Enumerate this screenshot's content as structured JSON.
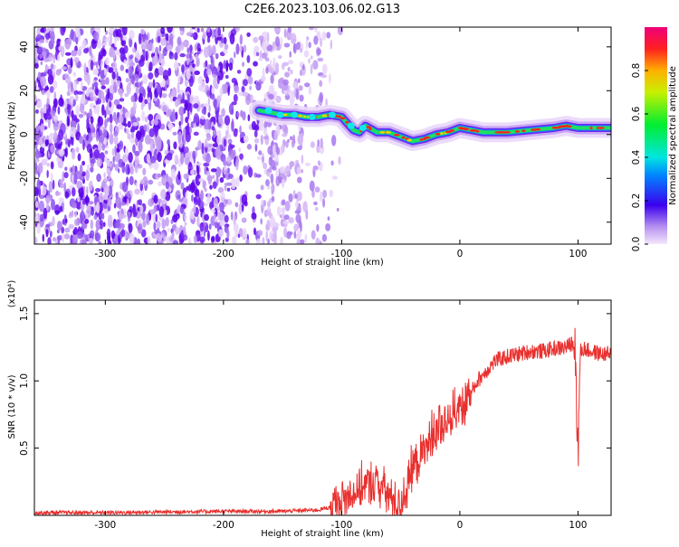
{
  "title": "C2E6.2023.103.06.02.G13",
  "chart_data": [
    {
      "type": "heatmap",
      "xlabel": "Height of straight line (km)",
      "ylabel": "Frequency (Hz)",
      "xlim": [
        -360,
        128
      ],
      "ylim": [
        -50,
        49
      ],
      "x_ticks": [
        -300,
        -200,
        -100,
        0,
        100
      ],
      "x_tick_labels": [
        "-300",
        "-200",
        "-100",
        "0",
        "100"
      ],
      "y_ticks": [
        -40,
        -20,
        0,
        20,
        40
      ],
      "y_tick_labels": [
        "-40",
        "-20",
        "0",
        "20",
        "40"
      ],
      "noise_region_x": [
        -360,
        -120
      ],
      "ridge": {
        "x": [
          -170,
          -160,
          -150,
          -140,
          -130,
          -120,
          -110,
          -100,
          -95,
          -90,
          -85,
          -80,
          -70,
          -60,
          -50,
          -40,
          -30,
          -20,
          -10,
          0,
          10,
          20,
          40,
          60,
          80,
          90,
          100,
          110,
          128
        ],
        "y": [
          11,
          10,
          9,
          9,
          8,
          8,
          9,
          8,
          5,
          2,
          1,
          4,
          1,
          1,
          -1,
          -3,
          -2,
          0,
          1,
          3,
          2,
          1,
          1,
          2,
          3,
          4,
          3,
          3,
          3
        ]
      },
      "colorbar": {
        "label": "Normalized spectral amplitude",
        "range": [
          0,
          1
        ],
        "ticks": [
          0.0,
          0.2,
          0.4,
          0.6,
          0.8
        ],
        "tick_labels": [
          "0.0",
          "0.2",
          "0.4",
          "0.6",
          "0.8"
        ]
      },
      "grid": false
    },
    {
      "type": "line",
      "xlabel": "Height of straight line (km)",
      "ylabel": "SNR (10 * v/v)",
      "y_multiplier": "(x10⁴)",
      "xlim": [
        -360,
        128
      ],
      "ylim": [
        0,
        1.6
      ],
      "x_ticks": [
        -300,
        -200,
        -100,
        0,
        100
      ],
      "x_tick_labels": [
        "-300",
        "-200",
        "-100",
        "0",
        "100"
      ],
      "y_ticks": [
        0.5,
        1.0,
        1.5
      ],
      "y_tick_labels": [
        "0.5",
        "1.0",
        "1.5"
      ],
      "color": "#e8302e",
      "series": [
        {
          "x": [
            -360,
            -300,
            -250,
            -200,
            -150,
            -120,
            -110,
            -100,
            -90,
            -80,
            -70,
            -60,
            -55,
            -50,
            -45,
            -40,
            -35,
            -30,
            -25,
            -20,
            -15,
            -10,
            -5,
            0,
            5,
            10,
            15,
            20,
            25,
            30,
            40,
            50,
            60,
            70,
            80,
            90,
            95,
            98,
            100,
            102,
            105,
            110,
            120,
            128
          ],
          "values": [
            0.02,
            0.02,
            0.025,
            0.03,
            0.03,
            0.04,
            0.06,
            0.1,
            0.18,
            0.22,
            0.25,
            0.15,
            0.1,
            0.08,
            0.2,
            0.35,
            0.42,
            0.48,
            0.55,
            0.62,
            0.68,
            0.72,
            0.78,
            0.82,
            0.85,
            0.92,
            1.0,
            1.05,
            1.1,
            1.15,
            1.18,
            1.2,
            1.22,
            1.22,
            1.24,
            1.25,
            1.28,
            1.2,
            0.52,
            1.22,
            1.24,
            1.22,
            1.2,
            1.2
          ]
        }
      ],
      "grid": false
    }
  ]
}
